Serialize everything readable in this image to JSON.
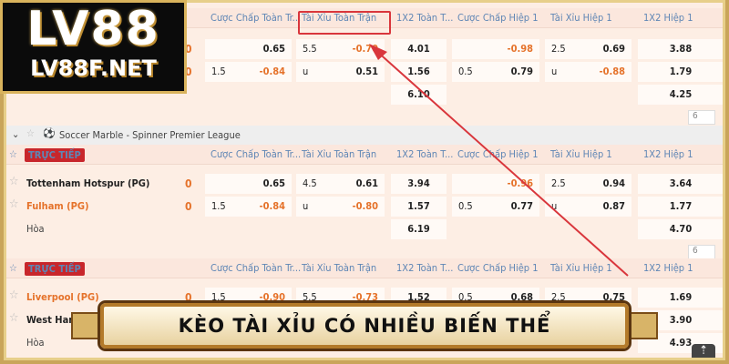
{
  "logo": {
    "line1": "LV88",
    "line2": "LV88F.NET"
  },
  "columns": [
    "Cược Chấp Toàn Tr...",
    "Tài Xỉu Toàn Trận",
    "1X2 Toàn T...",
    "Cược Chấp Hiệp 1",
    "Tài Xỉu Hiệp 1",
    "1X2 Hiệp 1"
  ],
  "live_label": "TRỰC TIẾP",
  "league": "Soccer Marble - Spinner Premier League",
  "page_select": "6",
  "banner": "KÈO TÀI XỈU CÓ NHIỀU BIẾN THỂ",
  "colors": {
    "accent": "#e5722a",
    "highlight": "#d9363c",
    "live": "#c8262b",
    "header_text": "#5f86b5"
  },
  "matches": [
    {
      "rows": [
        {
          "team": "",
          "score": "0",
          "cells": [
            [
              "",
              "0.65"
            ],
            [
              "5.5",
              "-0.70"
            ],
            [
              "4.01"
            ],
            [
              "",
              "-0.98"
            ],
            [
              "2.5",
              "0.69"
            ],
            [
              "3.88"
            ]
          ]
        },
        {
          "team": "",
          "score": "0",
          "cells": [
            [
              "1.5",
              "-0.84"
            ],
            [
              "u",
              "0.51"
            ],
            [
              "1.56"
            ],
            [
              "0.5",
              "0.79"
            ],
            [
              "u",
              "-0.88"
            ],
            [
              "1.79"
            ]
          ]
        },
        {
          "team": "",
          "score": "",
          "cells": [
            null,
            null,
            [
              "6.10"
            ],
            null,
            null,
            [
              "4.25"
            ]
          ]
        }
      ]
    },
    {
      "rows": [
        {
          "team": "Tottenham Hotspur (PG)",
          "score": "0",
          "cells": [
            [
              "",
              "0.65"
            ],
            [
              "4.5",
              "0.61"
            ],
            [
              "3.94"
            ],
            [
              "",
              "-0.96"
            ],
            [
              "2.5",
              "0.94"
            ],
            [
              "3.64"
            ]
          ]
        },
        {
          "team": "Fulham (PG)",
          "score": "0",
          "orange": true,
          "cells": [
            [
              "1.5",
              "-0.84"
            ],
            [
              "u",
              "-0.80"
            ],
            [
              "1.57"
            ],
            [
              "0.5",
              "0.77"
            ],
            [
              "u",
              "0.87"
            ],
            [
              "1.77"
            ]
          ]
        },
        {
          "team": "Hòa",
          "score": "",
          "draw": true,
          "cells": [
            null,
            null,
            [
              "6.19"
            ],
            null,
            null,
            [
              "4.70"
            ]
          ]
        }
      ]
    },
    {
      "rows": [
        {
          "team": "Liverpool (PG)",
          "score": "0",
          "orange": true,
          "cells": [
            [
              "1.5",
              "-0.90"
            ],
            [
              "5.5",
              "-0.73"
            ],
            [
              "1.52"
            ],
            [
              "0.5",
              "0.68"
            ],
            [
              "2.5",
              "0.75"
            ],
            [
              "1.69"
            ]
          ]
        },
        {
          "team": "West Ham U...",
          "score": "",
          "cells": [
            null,
            null,
            null,
            null,
            null,
            [
              "3.90"
            ]
          ]
        },
        {
          "team": "Hòa",
          "score": "",
          "draw": true,
          "cells": [
            null,
            null,
            null,
            null,
            null,
            [
              "4.93"
            ]
          ]
        }
      ]
    }
  ]
}
